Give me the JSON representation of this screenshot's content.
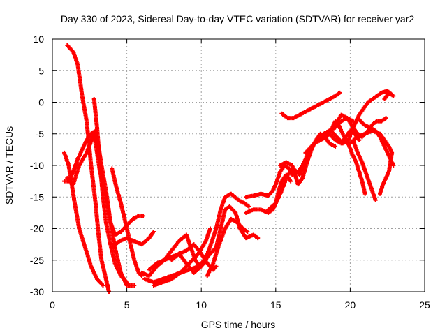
{
  "chart_data": {
    "type": "scatter",
    "title": "Day 330 of 2023, Sidereal Day-to-day VTEC variation (SDTVAR) for receiver yar2",
    "xlabel": "GPS time / hours",
    "ylabel": "SDTVAR / TECUs",
    "xlim": [
      0,
      25
    ],
    "ylim": [
      -30,
      10
    ],
    "xticks": [
      "0",
      "5",
      "10",
      "15",
      "20",
      "25"
    ],
    "yticks": [
      "10",
      "5",
      "0",
      "-5",
      "-10",
      "-15",
      "-20",
      "-25",
      "-30"
    ],
    "grid": true,
    "series_color": "#ff0000",
    "marker": "plus",
    "tracks": [
      [
        [
          1.0,
          9.0
        ],
        [
          1.4,
          8.0
        ],
        [
          1.7,
          6.0
        ],
        [
          2.0,
          1.0
        ],
        [
          2.3,
          -3.0
        ],
        [
          2.6,
          -10.0
        ],
        [
          2.9,
          -16.0
        ],
        [
          3.1,
          -21.0
        ],
        [
          3.3,
          -25.0
        ],
        [
          3.6,
          -28.0
        ],
        [
          3.8,
          -30.0
        ]
      ],
      [
        [
          0.8,
          -12.5
        ],
        [
          1.1,
          -12.5
        ],
        [
          1.4,
          -11.0
        ],
        [
          1.7,
          -9.0
        ],
        [
          2.0,
          -7.5
        ],
        [
          2.3,
          -6.0
        ],
        [
          2.6,
          -5.0
        ],
        [
          2.9,
          -4.5
        ],
        [
          3.1,
          -7.0
        ],
        [
          3.3,
          -10.0
        ],
        [
          3.6,
          -14.0
        ],
        [
          3.9,
          -19.0
        ],
        [
          4.2,
          -23.0
        ],
        [
          4.6,
          -27.0
        ],
        [
          5.0,
          -29.0
        ],
        [
          5.5,
          -29.0
        ]
      ],
      [
        [
          0.8,
          -8.0
        ],
        [
          1.1,
          -10.0
        ],
        [
          1.3,
          -13.0
        ],
        [
          1.5,
          -16.0
        ],
        [
          1.8,
          -20.0
        ],
        [
          2.2,
          -23.0
        ],
        [
          2.6,
          -26.0
        ],
        [
          3.0,
          -28.0
        ],
        [
          3.4,
          -29.0
        ]
      ],
      [
        [
          2.8,
          0.5
        ],
        [
          3.0,
          -4.0
        ],
        [
          3.2,
          -10.0
        ],
        [
          3.4,
          -15.0
        ],
        [
          3.6,
          -19.0
        ],
        [
          3.9,
          -22.5
        ],
        [
          4.2,
          -25.5
        ],
        [
          4.6,
          -27.5
        ],
        [
          5.0,
          -28.5
        ]
      ],
      [
        [
          4.0,
          -10.5
        ],
        [
          4.3,
          -13.5
        ],
        [
          4.6,
          -16.0
        ],
        [
          4.9,
          -19.0
        ],
        [
          5.2,
          -22.0
        ],
        [
          5.5,
          -25.0
        ],
        [
          5.8,
          -27.0
        ],
        [
          6.0,
          -27.5
        ]
      ],
      [
        [
          1.0,
          -12.0
        ],
        [
          1.4,
          -13.0
        ],
        [
          1.8,
          -10.0
        ],
        [
          2.3,
          -8.0
        ],
        [
          2.8,
          -5.0
        ],
        [
          3.2,
          -11.0
        ],
        [
          3.6,
          -15.0
        ],
        [
          3.9,
          -19.0
        ],
        [
          4.2,
          -21.0
        ],
        [
          4.6,
          -20.5
        ],
        [
          5.0,
          -19.5
        ],
        [
          5.4,
          -18.5
        ],
        [
          5.8,
          -18.0
        ],
        [
          6.1,
          -18.0
        ]
      ],
      [
        [
          4.0,
          -23.0
        ],
        [
          4.5,
          -22.0
        ],
        [
          5.0,
          -21.5
        ],
        [
          5.5,
          -22.0
        ],
        [
          6.0,
          -22.5
        ],
        [
          6.5,
          -21.5
        ],
        [
          6.8,
          -20.5
        ]
      ],
      [
        [
          6.0,
          -27.0
        ],
        [
          6.5,
          -27.5
        ],
        [
          7.0,
          -26.0
        ],
        [
          7.5,
          -25.0
        ],
        [
          8.0,
          -23.5
        ],
        [
          8.5,
          -22.0
        ],
        [
          9.0,
          -21.0
        ],
        [
          9.3,
          -23.0
        ],
        [
          9.6,
          -25.0
        ],
        [
          9.9,
          -26.0
        ],
        [
          10.2,
          -25.5
        ],
        [
          10.5,
          -24.0
        ]
      ],
      [
        [
          6.2,
          -28.0
        ],
        [
          6.8,
          -28.5
        ],
        [
          7.4,
          -28.0
        ],
        [
          8.0,
          -27.5
        ],
        [
          8.6,
          -27.0
        ],
        [
          9.2,
          -25.5
        ],
        [
          9.8,
          -24.0
        ],
        [
          10.3,
          -22.0
        ],
        [
          10.6,
          -20.0
        ]
      ],
      [
        [
          6.5,
          -26.5
        ],
        [
          7.0,
          -25.5
        ],
        [
          7.5,
          -25.0
        ],
        [
          8.0,
          -24.5
        ],
        [
          8.5,
          -24.0
        ],
        [
          9.0,
          -23.5
        ],
        [
          9.5,
          -22.5
        ],
        [
          10.0,
          -24.0
        ],
        [
          10.4,
          -25.5
        ],
        [
          10.8,
          -26.5
        ],
        [
          11.0,
          -26.0
        ]
      ],
      [
        [
          6.8,
          -29.0
        ],
        [
          7.4,
          -28.5
        ],
        [
          8.0,
          -28.0
        ],
        [
          8.6,
          -27.0
        ],
        [
          9.2,
          -26.5
        ],
        [
          9.8,
          -26.0
        ],
        [
          10.4,
          -24.5
        ],
        [
          11.0,
          -23.0
        ],
        [
          11.3,
          -20.0
        ],
        [
          11.6,
          -17.0
        ],
        [
          11.9,
          -16.5
        ],
        [
          12.3,
          -17.5
        ],
        [
          12.6,
          -20.0
        ],
        [
          13.0,
          -21.5
        ],
        [
          13.5,
          -21.0
        ],
        [
          13.8,
          -21.5
        ]
      ],
      [
        [
          8.0,
          -25.0
        ],
        [
          8.5,
          -24.0
        ],
        [
          9.0,
          -25.5
        ],
        [
          9.5,
          -27.0
        ],
        [
          10.0,
          -26.0
        ],
        [
          10.5,
          -23.5
        ],
        [
          11.0,
          -20.0
        ],
        [
          11.3,
          -17.0
        ],
        [
          11.6,
          -15.0
        ],
        [
          12.0,
          -14.5
        ],
        [
          12.5,
          -15.5
        ],
        [
          12.9,
          -16.0
        ],
        [
          13.2,
          -16.5
        ]
      ],
      [
        [
          10.4,
          -27.5
        ],
        [
          10.8,
          -25.5
        ],
        [
          11.2,
          -22.5
        ],
        [
          11.6,
          -20.0
        ],
        [
          12.0,
          -18.5
        ],
        [
          12.4,
          -19.0
        ],
        [
          12.8,
          -20.0
        ],
        [
          13.1,
          -20.5
        ]
      ],
      [
        [
          13.0,
          -17.5
        ],
        [
          13.5,
          -17.0
        ],
        [
          14.0,
          -17.0
        ],
        [
          14.5,
          -17.5
        ],
        [
          14.8,
          -17.0
        ],
        [
          15.0,
          -16.0
        ],
        [
          15.2,
          -14.0
        ],
        [
          15.4,
          -12.5
        ],
        [
          15.7,
          -11.5
        ],
        [
          16.0,
          -12.5
        ]
      ],
      [
        [
          13.0,
          -15.0
        ],
        [
          13.5,
          -14.8
        ],
        [
          14.0,
          -14.5
        ],
        [
          14.5,
          -14.8
        ],
        [
          14.8,
          -14.0
        ],
        [
          15.0,
          -13.0
        ],
        [
          15.3,
          -11.0
        ],
        [
          15.6,
          -10.0
        ],
        [
          15.9,
          -10.5
        ],
        [
          16.1,
          -11.5
        ]
      ],
      [
        [
          15.3,
          -10.0
        ],
        [
          15.7,
          -9.5
        ],
        [
          16.1,
          -10.0
        ],
        [
          16.3,
          -11.5
        ],
        [
          16.5,
          -13.0
        ],
        [
          16.8,
          -12.0
        ],
        [
          17.1,
          -9.5
        ],
        [
          17.4,
          -7.5
        ],
        [
          17.7,
          -6.0
        ],
        [
          18.0,
          -5.0
        ],
        [
          18.3,
          -5.5
        ],
        [
          18.6,
          -6.5
        ],
        [
          19.0,
          -7.0
        ]
      ],
      [
        [
          14.5,
          -17.0
        ],
        [
          15.0,
          -16.0
        ],
        [
          15.4,
          -14.0
        ],
        [
          15.8,
          -11.5
        ],
        [
          16.2,
          -10.5
        ],
        [
          16.6,
          -11.5
        ],
        [
          16.9,
          -10.0
        ],
        [
          17.2,
          -8.0
        ],
        [
          17.6,
          -6.5
        ],
        [
          18.0,
          -6.0
        ],
        [
          18.4,
          -5.5
        ],
        [
          18.7,
          -4.5
        ],
        [
          19.0,
          -3.0
        ],
        [
          19.2,
          -3.5
        ],
        [
          19.5,
          -5.0
        ],
        [
          19.8,
          -6.5
        ]
      ],
      [
        [
          15.4,
          -1.8
        ],
        [
          15.8,
          -2.5
        ],
        [
          16.2,
          -2.5
        ],
        [
          16.6,
          -2.0
        ],
        [
          17.0,
          -1.5
        ],
        [
          17.4,
          -1.0
        ],
        [
          17.8,
          -0.5
        ],
        [
          18.2,
          0.0
        ],
        [
          18.6,
          0.5
        ],
        [
          19.0,
          1.0
        ],
        [
          19.3,
          1.5
        ]
      ],
      [
        [
          16.5,
          -11.0
        ],
        [
          16.8,
          -10.0
        ],
        [
          17.1,
          -8.5
        ],
        [
          17.4,
          -7.0
        ],
        [
          17.8,
          -6.0
        ],
        [
          18.2,
          -5.5
        ],
        [
          18.6,
          -5.0
        ],
        [
          19.0,
          -6.0
        ],
        [
          19.4,
          -6.5
        ],
        [
          19.7,
          -5.5
        ],
        [
          20.0,
          -4.5
        ],
        [
          20.3,
          -5.0
        ],
        [
          20.6,
          -6.0
        ]
      ],
      [
        [
          17.0,
          -8.0
        ],
        [
          17.4,
          -7.0
        ],
        [
          17.8,
          -6.0
        ],
        [
          18.2,
          -5.0
        ],
        [
          18.6,
          -4.5
        ],
        [
          19.0,
          -4.0
        ],
        [
          19.4,
          -3.0
        ],
        [
          19.8,
          -2.5
        ],
        [
          20.2,
          -3.0
        ]
      ],
      [
        [
          18.3,
          -5.5
        ],
        [
          18.7,
          -4.5
        ],
        [
          19.1,
          -5.5
        ],
        [
          19.5,
          -6.5
        ],
        [
          19.9,
          -6.0
        ],
        [
          20.1,
          -4.5
        ],
        [
          20.4,
          -3.0
        ],
        [
          20.6,
          -2.0
        ],
        [
          20.9,
          -1.0
        ],
        [
          21.2,
          0.0
        ],
        [
          21.5,
          0.5
        ],
        [
          21.8,
          1.0
        ],
        [
          22.1,
          1.5
        ],
        [
          22.5,
          1.8
        ],
        [
          22.8,
          1.2
        ]
      ],
      [
        [
          19.0,
          -3.5
        ],
        [
          19.4,
          -2.0
        ],
        [
          19.8,
          -2.5
        ],
        [
          20.2,
          -4.0
        ],
        [
          20.5,
          -5.0
        ],
        [
          20.8,
          -5.5
        ],
        [
          21.2,
          -4.5
        ],
        [
          21.5,
          -3.5
        ],
        [
          21.8,
          -3.0
        ],
        [
          22.1,
          -3.0
        ],
        [
          22.4,
          -2.5
        ]
      ],
      [
        [
          19.8,
          -6.0
        ],
        [
          20.1,
          -8.0
        ],
        [
          20.4,
          -9.5
        ],
        [
          20.6,
          -11.0
        ],
        [
          20.8,
          -12.5
        ],
        [
          21.0,
          -14.5
        ]
      ],
      [
        [
          20.2,
          -6.0
        ],
        [
          20.5,
          -8.0
        ],
        [
          20.8,
          -9.5
        ],
        [
          21.1,
          -11.5
        ],
        [
          21.4,
          -13.5
        ],
        [
          21.7,
          -15.5
        ]
      ],
      [
        [
          20.0,
          -6.5
        ],
        [
          20.5,
          -5.5
        ],
        [
          21.0,
          -5.0
        ],
        [
          21.5,
          -4.5
        ],
        [
          22.0,
          -5.0
        ],
        [
          22.3,
          -6.0
        ],
        [
          22.6,
          -7.0
        ],
        [
          22.8,
          -8.0
        ],
        [
          22.6,
          -11.0
        ],
        [
          22.2,
          -13.0
        ],
        [
          22.0,
          -14.5
        ]
      ],
      [
        [
          20.5,
          -2.5
        ],
        [
          20.9,
          -3.5
        ],
        [
          21.3,
          -4.0
        ],
        [
          21.7,
          -4.5
        ],
        [
          22.0,
          -5.5
        ],
        [
          22.3,
          -7.0
        ],
        [
          22.6,
          -8.5
        ],
        [
          22.9,
          -10.0
        ]
      ],
      [
        [
          22.3,
          0.5
        ],
        [
          22.6,
          1.5
        ],
        [
          22.9,
          1.0
        ]
      ]
    ]
  }
}
